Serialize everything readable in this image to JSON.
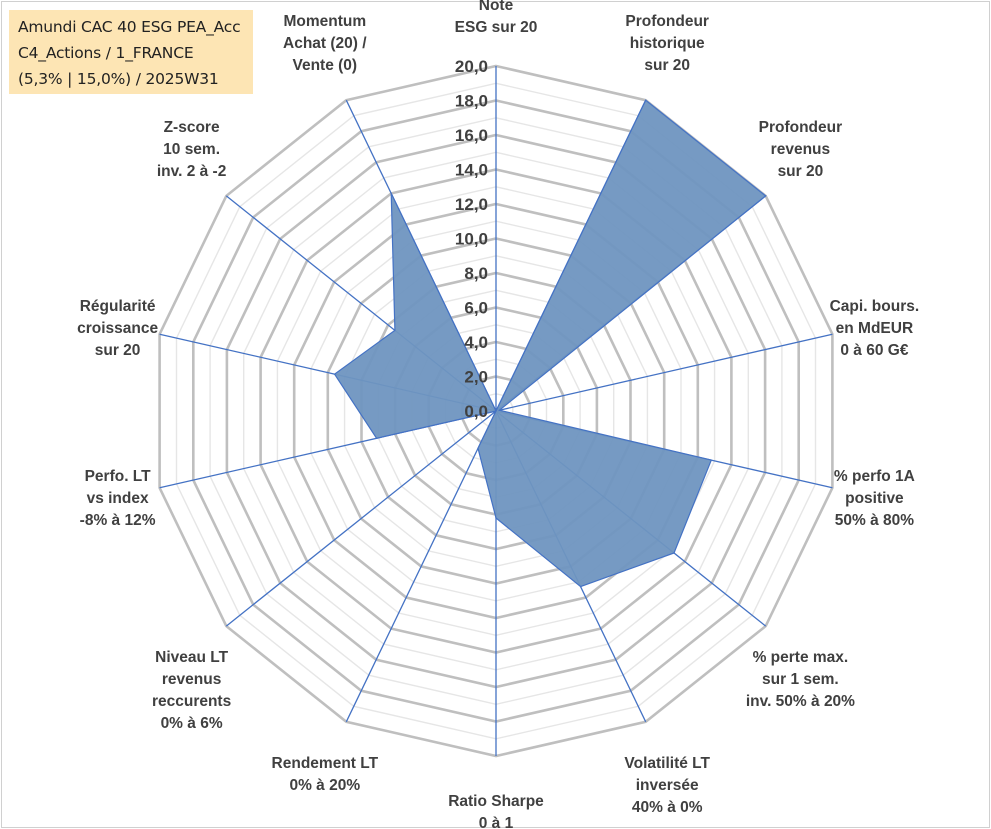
{
  "chart_data": {
    "type": "radar",
    "title_lines": [
      "Amundi CAC 40 ESG PEA_Acc",
      "C4_Actions / 1_FRANCE",
      "(5,3% | 15,0%) / 2025W31"
    ],
    "categories": [
      [
        "Note",
        "ESG sur 20"
      ],
      [
        "Profondeur",
        "historique",
        "sur 20"
      ],
      [
        "Profondeur",
        "revenus",
        "sur 20"
      ],
      [
        "Capi. bours.",
        "en MdEUR",
        "0 à 60 G€"
      ],
      [
        "% perfo 1A",
        "positive",
        "50% à 80%"
      ],
      [
        "% perte max.",
        "sur 1 sem.",
        "inv. 50% à 20%"
      ],
      [
        "Volatilité LT",
        "inversée",
        "40% à 0%"
      ],
      [
        "Ratio Sharpe",
        "0 à 1"
      ],
      [
        "Rendement LT",
        "0% à 20%"
      ],
      [
        "Niveau LT",
        "revenus",
        "reccurents",
        "0% à 6%"
      ],
      [
        "Perfo. LT",
        "vs index",
        "-8% à 12%"
      ],
      [
        "Régularité",
        "croissance",
        "sur 20"
      ],
      [
        "Z-score",
        "10 sem.",
        "inv. 2 à -2"
      ],
      [
        "Momentum",
        "Achat (20) /",
        "Vente (0)"
      ]
    ],
    "values": [
      0,
      20,
      20,
      0.2,
      12.8,
      13.2,
      11.3,
      6.2,
      2.4,
      0,
      7.1,
      9.6,
      7.5,
      14.0
    ],
    "tick_labels": [
      "0,0",
      "2,0",
      "4,0",
      "6,0",
      "8,0",
      "10,0",
      "12,0",
      "14,0",
      "16,0",
      "18,0",
      "20,0"
    ],
    "rlim": [
      0,
      20
    ],
    "major_step": 2,
    "minor_step": 1,
    "grid": true,
    "colors": {
      "fill": "#6f95c0",
      "fill_opacity": "0.95",
      "outline": "#4472c4",
      "spokes": "#4472c4",
      "major_grid": "#bfbfbf",
      "minor_grid": "#e6e6e6",
      "text": "#404040",
      "title_bg": "#fde5b4"
    }
  }
}
